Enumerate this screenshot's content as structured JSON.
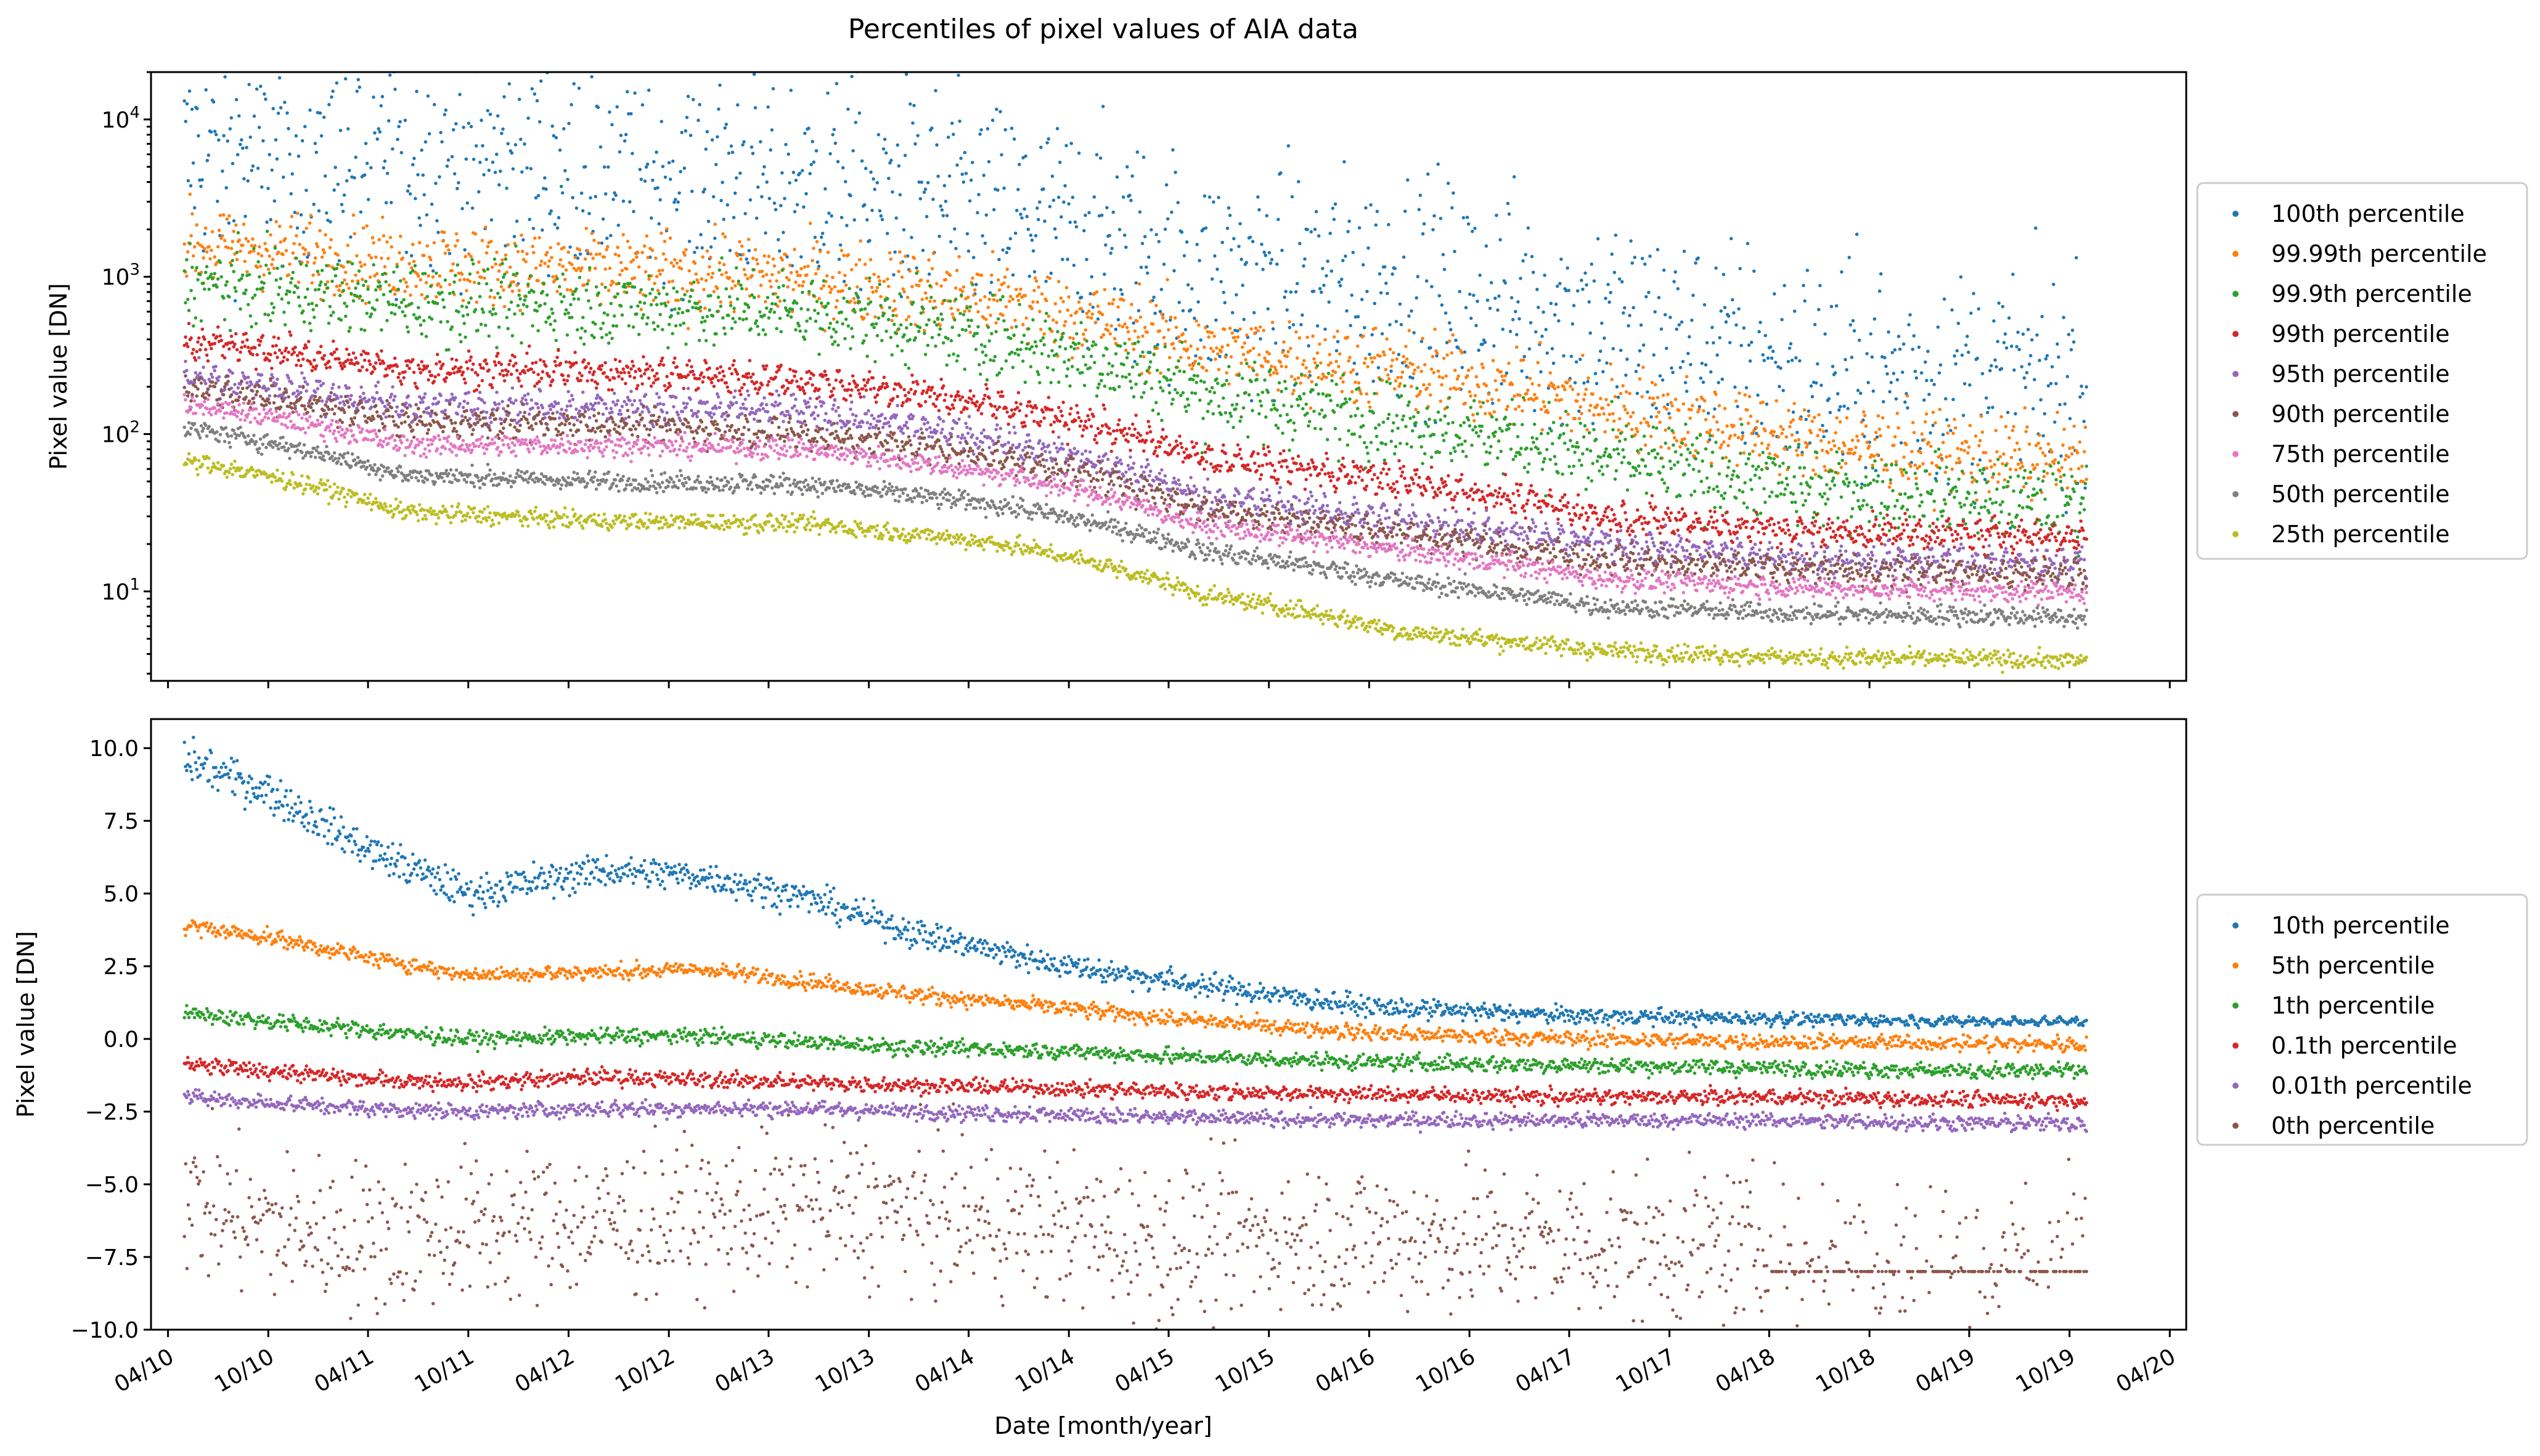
{
  "chart_data": {
    "title": "Percentiles of pixel values of AIA data",
    "type": "scatter",
    "xlabel": "Date [month/year]",
    "x_tick_labels": [
      "04/10",
      "10/10",
      "04/11",
      "10/11",
      "04/12",
      "10/12",
      "04/13",
      "10/13",
      "04/14",
      "10/14",
      "04/15",
      "10/15",
      "04/16",
      "10/16",
      "04/17",
      "10/17",
      "04/18",
      "10/18",
      "04/19",
      "10/19",
      "04/20"
    ],
    "x_range": [
      "2010-03-01",
      "2020-05-01"
    ],
    "data_x_range": [
      "2010-05-01",
      "2019-11-01"
    ],
    "panels": [
      {
        "ylabel": "Pixel value [DN]",
        "yscale": "log",
        "ylim": [
          2.7,
          20000
        ],
        "y_tick_labels": [
          "10^1",
          "10^2",
          "10^3",
          "10^4"
        ],
        "legend_position": "right",
        "series": [
          {
            "name": "100th percentile",
            "color": "#1f77b4",
            "x": [
              "2010-06",
              "2011-06",
              "2012-06",
              "2013-06",
              "2014-06",
              "2015-06",
              "2016-06",
              "2017-06",
              "2018-06",
              "2019-06",
              "2019-11"
            ],
            "y": [
              6000,
              6000,
              5000,
              4000,
              2500,
              1000,
              900,
              500,
              250,
              220,
              200
            ]
          },
          {
            "name": "99.99th percentile",
            "color": "#ff7f0e",
            "x": [
              "2010-06",
              "2011-06",
              "2012-06",
              "2013-06",
              "2014-06",
              "2015-06",
              "2016-06",
              "2017-06",
              "2018-06",
              "2019-06",
              "2019-11"
            ],
            "y": [
              1600,
              1200,
              1100,
              1000,
              700,
              350,
              250,
              150,
              90,
              70,
              65
            ]
          },
          {
            "name": "99.9th percentile",
            "color": "#2ca02c",
            "x": [
              "2010-06",
              "2011-06",
              "2012-06",
              "2013-06",
              "2014-06",
              "2015-06",
              "2016-06",
              "2017-06",
              "2018-06",
              "2019-06",
              "2019-11"
            ],
            "y": [
              900,
              700,
              650,
              600,
              400,
              180,
              120,
              70,
              45,
              38,
              37
            ]
          },
          {
            "name": "99th percentile",
            "color": "#d62728",
            "x": [
              "2010-06",
              "2011-06",
              "2012-06",
              "2013-06",
              "2014-06",
              "2015-06",
              "2016-06",
              "2017-06",
              "2018-06",
              "2019-06",
              "2019-11"
            ],
            "y": [
              380,
              260,
              250,
              220,
              150,
              70,
              50,
              30,
              24,
              23,
              22
            ]
          },
          {
            "name": "95th percentile",
            "color": "#9467bd",
            "x": [
              "2010-06",
              "2011-06",
              "2012-06",
              "2013-06",
              "2014-06",
              "2015-06",
              "2016-06",
              "2017-06",
              "2018-06",
              "2019-06",
              "2019-11"
            ],
            "y": [
              230,
              150,
              150,
              140,
              90,
              40,
              28,
              20,
              16,
              15.5,
              15
            ]
          },
          {
            "name": "90th percentile",
            "color": "#8c564b",
            "x": [
              "2010-06",
              "2011-06",
              "2012-06",
              "2013-06",
              "2014-06",
              "2015-06",
              "2016-06",
              "2017-06",
              "2018-06",
              "2019-06",
              "2019-11"
            ],
            "y": [
              190,
              120,
              115,
              100,
              70,
              33,
              23,
              16,
              13.5,
              13,
              13
            ]
          },
          {
            "name": "75th percentile",
            "color": "#e377c2",
            "x": [
              "2010-06",
              "2011-06",
              "2012-06",
              "2013-06",
              "2014-06",
              "2015-06",
              "2016-06",
              "2017-06",
              "2018-06",
              "2019-06",
              "2019-11"
            ],
            "y": [
              150,
              85,
              85,
              80,
              55,
              26,
              18,
              12,
              10.5,
              10,
              10
            ]
          },
          {
            "name": "50th percentile",
            "color": "#7f7f7f",
            "x": [
              "2010-06",
              "2011-06",
              "2012-06",
              "2013-06",
              "2014-06",
              "2015-06",
              "2016-06",
              "2017-06",
              "2018-06",
              "2019-06",
              "2019-11"
            ],
            "y": [
              105,
              55,
              50,
              48,
              35,
              18,
              11.5,
              8,
              7.2,
              7,
              6.8
            ]
          },
          {
            "name": "25th percentile",
            "color": "#bcbd22",
            "x": [
              "2010-06",
              "2011-06",
              "2012-06",
              "2013-06",
              "2014-06",
              "2015-06",
              "2016-06",
              "2017-06",
              "2018-06",
              "2019-06",
              "2019-11"
            ],
            "y": [
              65,
              32,
              28,
              27,
              20,
              9.5,
              5.5,
              4.2,
              3.8,
              3.7,
              3.6
            ]
          }
        ]
      },
      {
        "ylabel": "Pixel value [DN]",
        "yscale": "linear",
        "ylim": [
          -10,
          11
        ],
        "y_tick_labels": [
          "−10.0",
          "−7.5",
          "−5.0",
          "−2.5",
          "0.0",
          "2.5",
          "5.0",
          "7.5",
          "10.0"
        ],
        "legend_position": "right",
        "series": [
          {
            "name": "10th percentile",
            "color": "#1f77b4",
            "x": [
              "2010-05",
              "2010-10",
              "2011-04",
              "2011-10",
              "2012-06",
              "2012-12",
              "2013-06",
              "2014-01",
              "2014-09",
              "2015-04",
              "2016-04",
              "2017-04",
              "2018-04",
              "2019-04",
              "2019-11"
            ],
            "y": [
              9.6,
              8.5,
              6.5,
              5.0,
              5.8,
              5.6,
              4.9,
              3.6,
              2.6,
              2.0,
              1.1,
              0.8,
              0.7,
              0.6,
              0.6
            ]
          },
          {
            "name": "5th percentile",
            "color": "#ff7f0e",
            "x": [
              "2010-05",
              "2010-10",
              "2011-04",
              "2011-10",
              "2012-06",
              "2012-12",
              "2013-06",
              "2014-01",
              "2014-09",
              "2015-04",
              "2016-04",
              "2017-04",
              "2018-04",
              "2019-04",
              "2019-11"
            ],
            "y": [
              3.9,
              3.5,
              2.8,
              2.2,
              2.3,
              2.4,
              2.0,
              1.5,
              1.1,
              0.7,
              0.2,
              0.0,
              -0.1,
              -0.15,
              -0.2
            ]
          },
          {
            "name": "1th percentile",
            "color": "#2ca02c",
            "x": [
              "2010-05",
              "2010-10",
              "2011-04",
              "2011-10",
              "2012-06",
              "2012-12",
              "2013-06",
              "2014-01",
              "2014-09",
              "2015-04",
              "2016-04",
              "2017-04",
              "2018-04",
              "2019-04",
              "2019-11"
            ],
            "y": [
              0.9,
              0.6,
              0.3,
              0.0,
              0.1,
              0.1,
              -0.1,
              -0.3,
              -0.4,
              -0.6,
              -0.8,
              -0.9,
              -1.0,
              -1.1,
              -1.1
            ]
          },
          {
            "name": "0.1th percentile",
            "color": "#d62728",
            "x": [
              "2010-05",
              "2010-10",
              "2011-04",
              "2011-10",
              "2012-06",
              "2012-12",
              "2013-06",
              "2014-01",
              "2014-09",
              "2015-04",
              "2016-04",
              "2017-04",
              "2018-04",
              "2019-04",
              "2019-11"
            ],
            "y": [
              -0.9,
              -1.1,
              -1.4,
              -1.5,
              -1.3,
              -1.4,
              -1.5,
              -1.6,
              -1.7,
              -1.8,
              -1.9,
              -2.0,
              -2.0,
              -2.1,
              -2.1
            ]
          },
          {
            "name": "0.01th percentile",
            "color": "#9467bd",
            "x": [
              "2010-05",
              "2010-10",
              "2011-04",
              "2011-10",
              "2012-06",
              "2012-12",
              "2013-06",
              "2014-01",
              "2014-09",
              "2015-04",
              "2016-04",
              "2017-04",
              "2018-04",
              "2019-04",
              "2019-11"
            ],
            "y": [
              -2.0,
              -2.2,
              -2.4,
              -2.5,
              -2.4,
              -2.4,
              -2.4,
              -2.5,
              -2.6,
              -2.7,
              -2.8,
              -2.8,
              -2.8,
              -2.9,
              -2.9
            ]
          },
          {
            "name": "0th percentile",
            "color": "#8c564b",
            "x": [
              "2010-05",
              "2010-10",
              "2011-04",
              "2011-10",
              "2012-06",
              "2012-12",
              "2013-06",
              "2014-01",
              "2014-09",
              "2015-04",
              "2016-04",
              "2017-04",
              "2018-04",
              "2019-04",
              "2019-11"
            ],
            "y": [
              -5.5,
              -6.5,
              -6.8,
              -6.5,
              -6.3,
              -6.2,
              -5.8,
              -6.0,
              -6.5,
              -7.0,
              -6.8,
              -7.0,
              -7.2,
              -7.5,
              -6.8
            ]
          }
        ]
      }
    ]
  }
}
